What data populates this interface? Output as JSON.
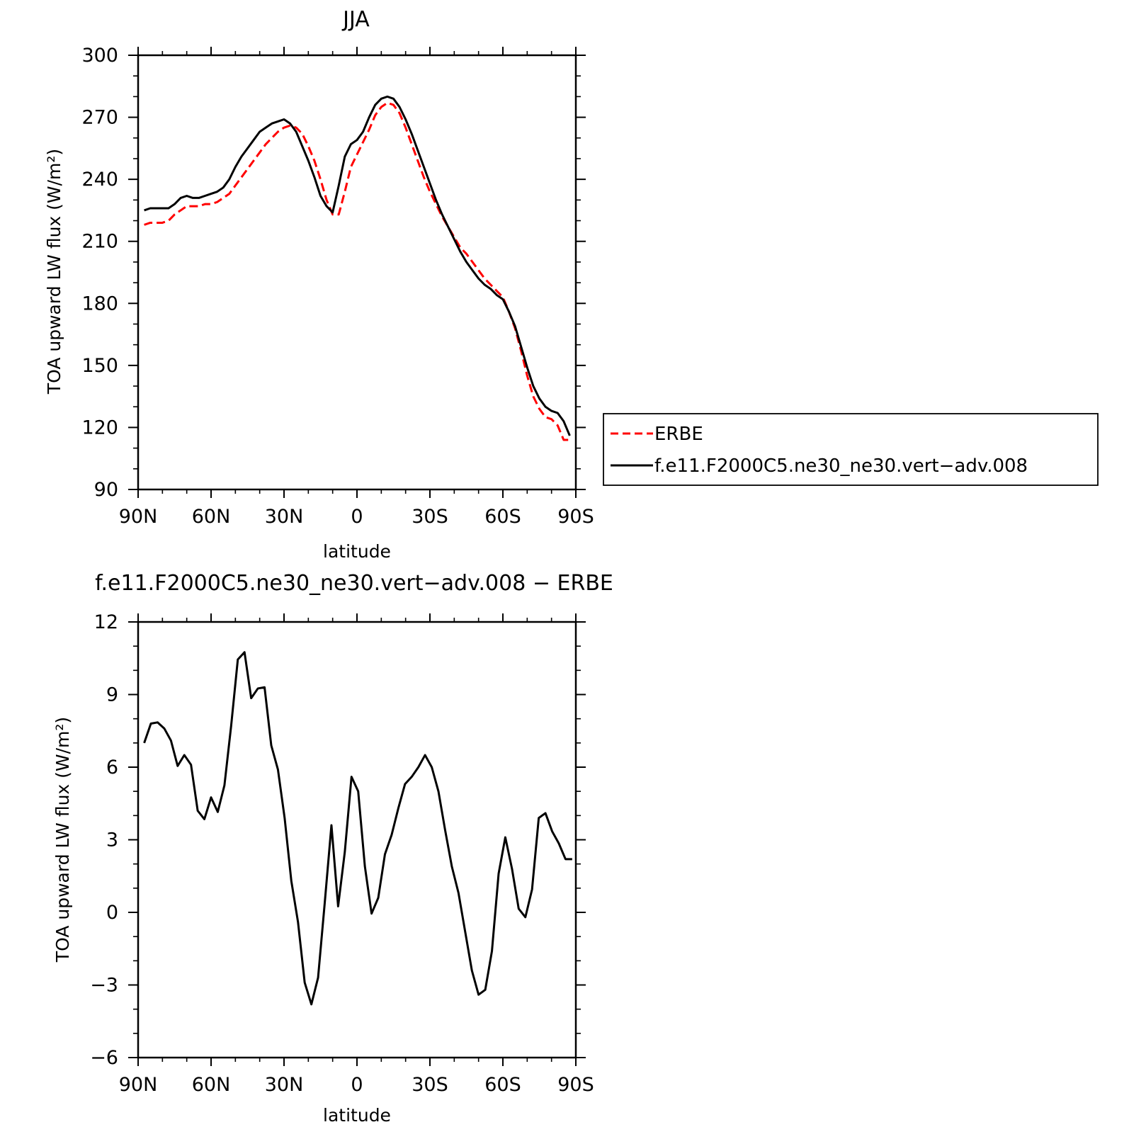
{
  "chart_data": [
    {
      "type": "line",
      "title": "JJA",
      "xlabel": "latitude",
      "ylabel": "TOA upward LW flux (W/m²)",
      "xlim": [
        90,
        -90
      ],
      "ylim": [
        90,
        300
      ],
      "xticks": [
        90,
        60,
        30,
        0,
        -30,
        -60,
        -90
      ],
      "xtick_labels": [
        "90N",
        "60N",
        "30N",
        "0",
        "30S",
        "60S",
        "90S"
      ],
      "yticks": [
        90,
        120,
        150,
        180,
        210,
        240,
        270,
        300
      ],
      "ytick_labels": [
        "90",
        "120",
        "150",
        "180",
        "210",
        "240",
        "270",
        "300"
      ],
      "grid": false,
      "legend": {
        "placement": "right",
        "entries": [
          "ERBE",
          "f.e11.F2000C5.ne30_ne30.vert−adv.008"
        ]
      },
      "series": [
        {
          "name": "ERBE",
          "color": "#ff0000",
          "style": "dashed",
          "x": [
            87.5,
            85,
            82.5,
            80,
            77.5,
            75,
            72.5,
            70,
            67.5,
            65,
            62.5,
            60,
            57.5,
            55,
            52.5,
            50,
            47.5,
            45,
            42.5,
            40,
            37.5,
            35,
            32.5,
            30,
            27.5,
            25,
            22.5,
            20,
            17.5,
            15,
            12.5,
            10,
            7.5,
            5,
            2.5,
            0,
            -2.5,
            -5,
            -7.5,
            -10,
            -12.5,
            -15,
            -17.5,
            -20,
            -22.5,
            -25,
            -27.5,
            -30,
            -32.5,
            -35,
            -37.5,
            -40,
            -42.5,
            -45,
            -47.5,
            -50,
            -52.5,
            -55,
            -57.5,
            -60,
            -62.5,
            -65,
            -67.5,
            -70,
            -72.5,
            -75,
            -77.5,
            -80,
            -82.5,
            -85,
            -87.5
          ],
          "values": [
            218,
            219,
            219,
            219,
            220,
            223,
            225,
            227,
            227,
            227,
            228,
            228,
            229,
            231,
            233,
            237,
            241,
            245,
            249,
            253,
            257,
            260,
            263,
            265,
            266,
            265,
            262,
            256,
            249,
            240,
            230,
            223,
            223,
            234,
            246,
            252,
            258,
            264,
            271,
            275,
            277,
            276,
            272,
            265,
            257,
            249,
            241,
            234,
            228,
            222,
            217,
            212,
            207,
            204,
            200,
            196,
            192,
            189,
            186,
            183,
            176,
            168,
            157,
            145,
            135,
            129,
            125,
            124,
            121,
            114,
            114
          ],
          "valid_range_x": [
            87.5,
            -88.5
          ]
        },
        {
          "name": "f.e11.F2000C5.ne30_ne30.vert−adv.008",
          "color": "#000000",
          "style": "solid",
          "x": [
            87.5,
            85,
            82.5,
            80,
            77.5,
            75,
            72.5,
            70,
            67.5,
            65,
            62.5,
            60,
            57.5,
            55,
            52.5,
            50,
            47.5,
            45,
            42.5,
            40,
            37.5,
            35,
            32.5,
            30,
            27.5,
            25,
            22.5,
            20,
            17.5,
            15,
            12.5,
            10,
            7.5,
            5,
            2.5,
            0,
            -2.5,
            -5,
            -7.5,
            -10,
            -12.5,
            -15,
            -17.5,
            -20,
            -22.5,
            -25,
            -27.5,
            -30,
            -32.5,
            -35,
            -37.5,
            -40,
            -42.5,
            -45,
            -47.5,
            -50,
            -52.5,
            -55,
            -57.5,
            -60,
            -62.5,
            -65,
            -67.5,
            -70,
            -72.5,
            -75,
            -77.5,
            -80,
            -82.5,
            -85,
            -87.5
          ],
          "values": [
            225,
            226,
            226,
            226,
            226,
            228,
            231,
            232,
            231,
            231,
            232,
            233,
            234,
            236,
            240,
            246,
            251,
            255,
            259,
            263,
            265,
            267,
            268,
            269,
            267,
            263,
            256,
            249,
            241,
            232,
            227,
            224,
            237,
            251,
            257,
            259,
            263,
            270,
            276,
            279,
            280,
            279,
            275,
            269,
            262,
            254,
            246,
            238,
            230,
            223,
            217,
            211,
            205,
            200,
            196,
            192,
            189,
            187,
            184,
            182,
            176,
            169,
            159,
            149,
            140,
            134,
            130,
            128,
            127,
            123,
            116
          ]
        }
      ]
    },
    {
      "type": "line",
      "title": "f.e11.F2000C5.ne30_ne30.vert−adv.008 − ERBE",
      "xlabel": "latitude",
      "ylabel": "TOA upward LW flux (W/m²)",
      "xlim": [
        90,
        -90
      ],
      "ylim": [
        -6,
        12
      ],
      "xticks": [
        90,
        60,
        30,
        0,
        -30,
        -60,
        -90
      ],
      "xtick_labels": [
        "90N",
        "60N",
        "30N",
        "0",
        "30S",
        "60S",
        "90S"
      ],
      "yticks": [
        -6,
        -3,
        0,
        3,
        6,
        9,
        12
      ],
      "ytick_labels": [
        "−6",
        "−3",
        "0",
        "3",
        "6",
        "9",
        "12"
      ],
      "grid": false,
      "series": [
        {
          "color": "#000000",
          "style": "solid",
          "x": [
            87.5,
            84.75,
            82,
            79.25,
            76.5,
            73.75,
            71,
            68.25,
            65.5,
            62.75,
            60,
            57.25,
            54.5,
            51.75,
            49,
            46.25,
            43.5,
            40.75,
            38,
            35.25,
            32.5,
            29.75,
            27,
            24.25,
            21.5,
            18.75,
            16,
            13.25,
            10.5,
            7.75,
            5,
            2.25,
            -0.5,
            -3.25,
            -6,
            -8.75,
            -11.5,
            -14.25,
            -17,
            -19.75,
            -22.5,
            -25.25,
            -28,
            -30.75,
            -33.5,
            -36.25,
            -39,
            -41.75,
            -44.5,
            -47.25,
            -50,
            -52.75,
            -55.5,
            -58.25,
            -61,
            -63.75,
            -66.5,
            -69.25,
            -72,
            -74.75,
            -77.5,
            -80.25,
            -83,
            -85.75,
            -88.5
          ],
          "values": [
            7.0,
            7.8,
            7.85,
            7.6,
            7.1,
            6.05,
            6.5,
            6.1,
            4.2,
            3.85,
            4.75,
            4.15,
            5.25,
            7.7,
            10.45,
            10.75,
            8.85,
            9.25,
            9.3,
            6.9,
            5.9,
            3.9,
            1.3,
            -0.4,
            -2.9,
            -3.8,
            -2.7,
            0.4,
            3.6,
            0.25,
            2.5,
            5.6,
            5.0,
            1.9,
            -0.05,
            0.6,
            2.4,
            3.2,
            4.3,
            5.3,
            5.6,
            6.0,
            6.5,
            6.0,
            5.0,
            3.4,
            1.9,
            0.8,
            -0.8,
            -2.4,
            -3.4,
            -3.2,
            -1.6,
            1.6,
            3.1,
            1.8,
            0.15,
            -0.2,
            0.95,
            3.9,
            4.1,
            3.35,
            2.85,
            2.2,
            2.2
          ]
        }
      ]
    }
  ]
}
